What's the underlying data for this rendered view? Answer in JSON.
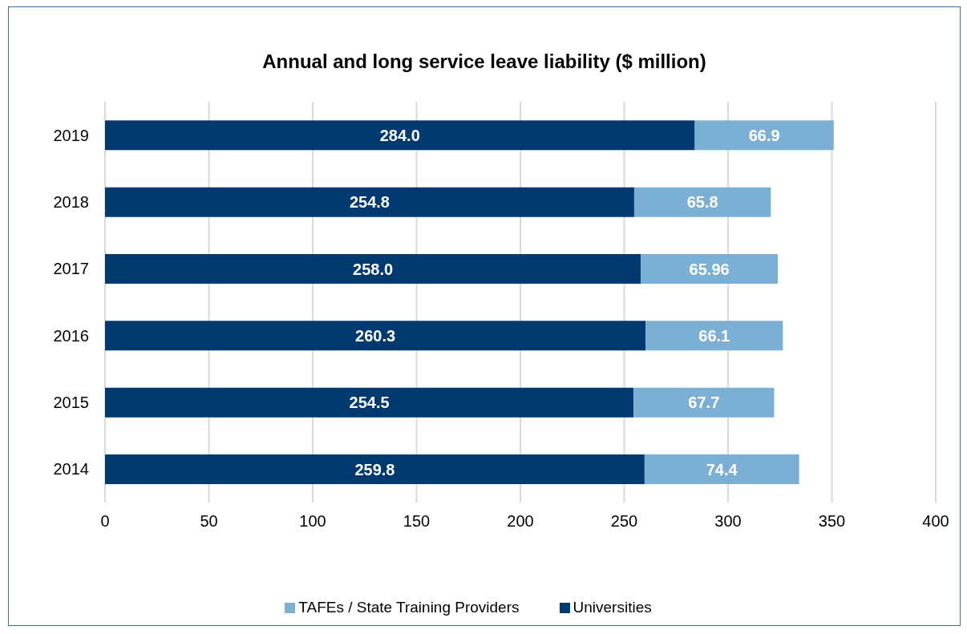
{
  "chart_data": {
    "type": "bar",
    "orientation": "horizontal",
    "stacked": true,
    "title": "Annual and long service leave liability ($ million)",
    "categories": [
      "2019",
      "2018",
      "2017",
      "2016",
      "2015",
      "2014"
    ],
    "series": [
      {
        "name": "Universities",
        "color": "#003a70",
        "values": [
          284.0,
          254.8,
          258.0,
          260.3,
          254.5,
          259.8
        ],
        "value_labels": [
          "284.0",
          "254.8",
          "258.0",
          "260.3",
          "254.5",
          "259.8"
        ]
      },
      {
        "name": "TAFEs / State Training Providers",
        "color": "#7bafd4",
        "values": [
          66.9,
          65.8,
          65.96,
          66.1,
          67.7,
          74.4
        ],
        "value_labels": [
          "66.9",
          "65.8",
          "65.96",
          "66.1",
          "67.7",
          "74.4"
        ]
      }
    ],
    "xlim": [
      0,
      400
    ],
    "xticks": [
      0,
      50,
      100,
      150,
      200,
      250,
      300,
      350,
      400
    ],
    "grid": "x",
    "legend": "bottom"
  }
}
